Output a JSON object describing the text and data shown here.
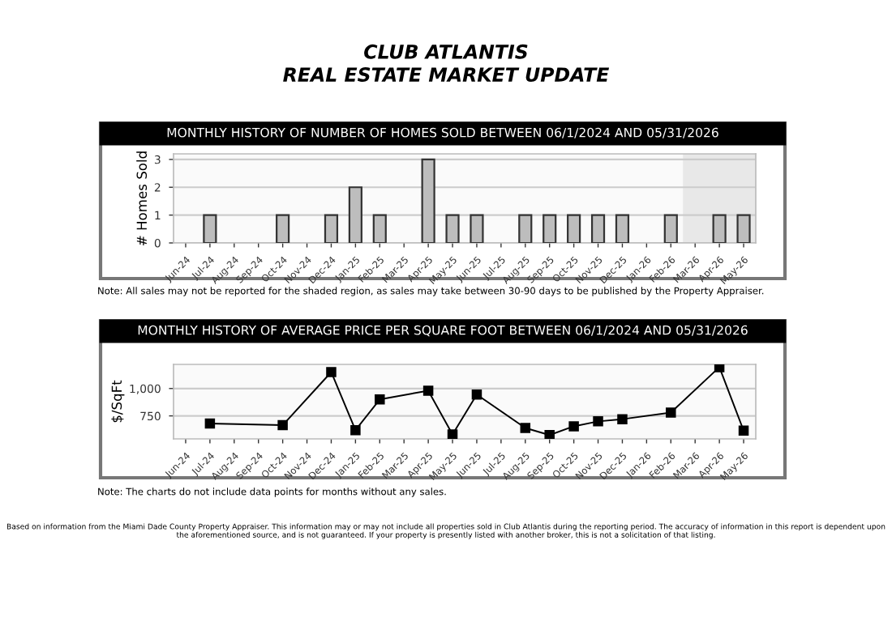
{
  "chart_data": [
    {
      "type": "bar",
      "title": "CLUB ATLANTIS\nREAL ESTATE MARKET UPDATE",
      "subtitle": "MONTHLY HISTORY OF NUMBER OF HOMES SOLD BETWEEN 06/1/2024 AND 05/31/2026",
      "ylabel": "# Homes Sold",
      "categories": [
        "Jun-24",
        "Jul-24",
        "Aug-24",
        "Sep-24",
        "Oct-24",
        "Nov-24",
        "Dec-24",
        "Jan-25",
        "Feb-25",
        "Mar-25",
        "Apr-25",
        "May-25",
        "Jun-25",
        "Jul-25",
        "Aug-25",
        "Sep-25",
        "Oct-25",
        "Nov-25",
        "Dec-25",
        "Jan-26",
        "Feb-26",
        "Mar-26",
        "Apr-26",
        "May-26"
      ],
      "values": [
        0,
        1,
        0,
        0,
        1,
        0,
        1,
        2,
        1,
        0,
        3,
        1,
        1,
        0,
        1,
        1,
        1,
        1,
        1,
        0,
        1,
        0,
        1,
        1
      ],
      "color": "#bdbdbd",
      "ylim": [
        0,
        3.2
      ],
      "yticks": [
        0,
        1,
        2,
        3
      ],
      "grid": "y",
      "bands": [
        {
          "axis": "x",
          "from": "Mar-26",
          "to": "May-26",
          "color": "#e8e8e8"
        }
      ],
      "annotations": [
        "Note: All sales may not be reported for the shaded region, as sales may take between 30-90 days to be published by the Property Appraiser."
      ]
    },
    {
      "type": "line",
      "title": "MONTHLY HISTORY OF AVERAGE PRICE PER SQUARE FOOT BETWEEN 06/1/2024 AND 05/31/2026",
      "ylabel": "$/SqFt",
      "categories": [
        "Jun-24",
        "Jul-24",
        "Aug-24",
        "Sep-24",
        "Oct-24",
        "Nov-24",
        "Dec-24",
        "Jan-25",
        "Feb-25",
        "Mar-25",
        "Apr-25",
        "May-25",
        "Jun-25",
        "Jul-25",
        "Aug-25",
        "Sep-25",
        "Oct-25",
        "Nov-25",
        "Dec-25",
        "Jan-26",
        "Feb-26",
        "Mar-26",
        "Apr-26",
        "May-26"
      ],
      "values": [
        null,
        680,
        null,
        null,
        665,
        null,
        1150,
        620,
        900,
        null,
        980,
        580,
        945,
        null,
        640,
        575,
        655,
        700,
        720,
        null,
        780,
        null,
        1195,
        615
      ],
      "color": "#000000",
      "marker": "square",
      "line_style": "solid",
      "ylim": [
        540,
        1220
      ],
      "yticks": [
        {
          "value": 750,
          "label": "750"
        },
        {
          "value": 1000,
          "label": "1,000"
        }
      ],
      "grid": "y",
      "annotations": [
        "Note: The charts do not include data points for months without any sales.",
        "Based on information from the Miami Dade County Property Appraiser. This information may or may not include all properties sold in Club Atlantis during the reporting period. The accuracy of information in this report is dependent upon the aforementioned source, and is not guaranteed. If your property is presently listed with another broker, this is not a solicitation of that listing."
      ]
    }
  ]
}
